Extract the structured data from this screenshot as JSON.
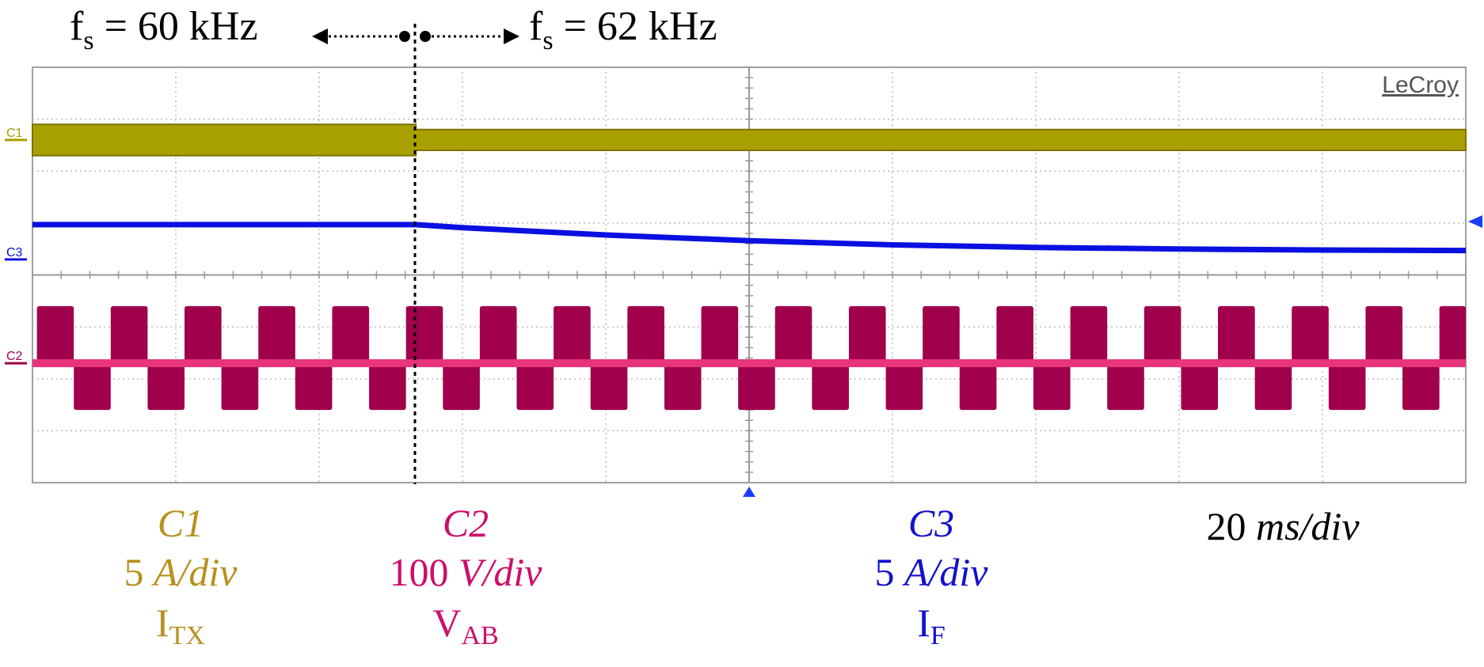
{
  "header": {
    "left": {
      "f": "f",
      "sub": "s",
      "eq": " = 60 kHz"
    },
    "right": {
      "f": "f",
      "sub": "s",
      "eq": " = 62 kHz"
    }
  },
  "brand": "LeCroy",
  "channels": [
    {
      "tag": "C1",
      "color": "#a8a000",
      "label_color": "#b8901e",
      "name": "C1",
      "scale_num": "5 ",
      "scale_unit": "A/div",
      "sig": "I",
      "sig_sub": "TX"
    },
    {
      "tag": "C2",
      "color": "#a0004c",
      "label_color": "#cc0e6c",
      "name": "C2",
      "scale_num": "100 ",
      "scale_unit": "V/div",
      "sig": "V",
      "sig_sub": "AB"
    },
    {
      "tag": "C3",
      "color": "#0a10e0",
      "label_color": "#1111cc",
      "name": "C3",
      "scale_num": "5 ",
      "scale_unit": "A/div",
      "sig": "I",
      "sig_sub": "F"
    }
  ],
  "timebase": {
    "num": "20 ",
    "unit": "ms/div"
  },
  "chart_data": {
    "type": "line",
    "title": "",
    "x_unit": "ms",
    "x_divisions": 10,
    "x_per_div": 20,
    "xlim": [
      0,
      200
    ],
    "y_divisions": 8,
    "grid": true,
    "transition_x": 53.5,
    "series": [
      {
        "name": "C1",
        "kind": "envelope",
        "x": [
          0,
          53.5,
          53.5,
          200
        ],
        "upper_div": [
          6.9,
          6.9,
          6.8,
          6.8
        ],
        "lower_div": [
          6.3,
          6.3,
          6.4,
          6.4
        ]
      },
      {
        "name": "C3",
        "kind": "line",
        "x": [
          0,
          53.5,
          60,
          80,
          100,
          120,
          140,
          160,
          180,
          200
        ],
        "y_div": [
          4.97,
          4.97,
          4.91,
          4.77,
          4.66,
          4.58,
          4.53,
          4.5,
          4.48,
          4.47
        ]
      },
      {
        "name": "C2",
        "kind": "burst",
        "x_start": 0,
        "x_end": 200,
        "period_ms": [
          10.3,
          10.3
        ],
        "high_div": 3.4,
        "low_div": 1.4,
        "mid_div": 2.3
      }
    ]
  }
}
